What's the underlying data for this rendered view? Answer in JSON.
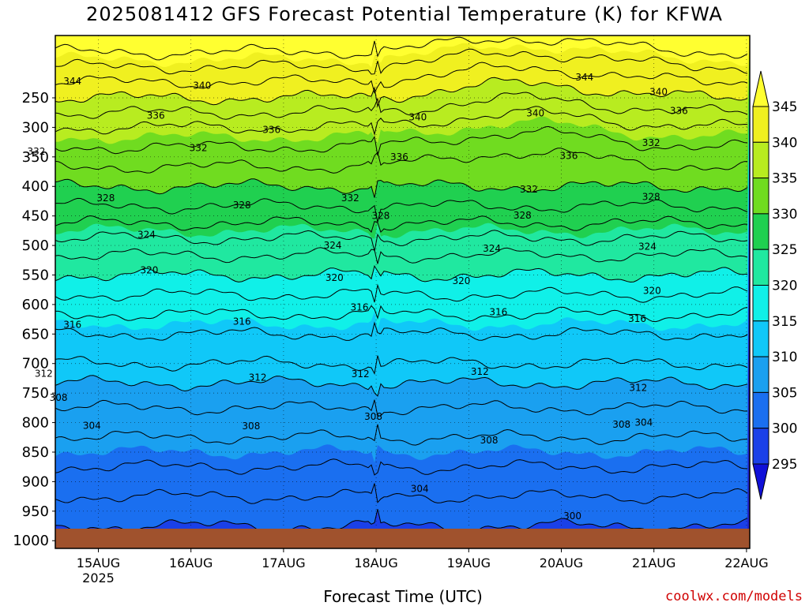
{
  "chart_data": {
    "type": "contour",
    "title": "2025081412 GFS Forecast Potential Temperature (K) for KFWA",
    "xlabel": "Forecast Time (UTC)",
    "credit": "coolwx.com/models",
    "x_ticks": [
      {
        "label": "15AUG",
        "sub": "2025",
        "day": 1
      },
      {
        "label": "16AUG",
        "sub": "",
        "day": 2
      },
      {
        "label": "17AUG",
        "sub": "",
        "day": 3
      },
      {
        "label": "18AUG",
        "sub": "",
        "day": 4
      },
      {
        "label": "19AUG",
        "sub": "",
        "day": 5
      },
      {
        "label": "20AUG",
        "sub": "",
        "day": 6
      },
      {
        "label": "21AUG",
        "sub": "",
        "day": 7
      },
      {
        "label": "22AUG",
        "sub": "",
        "day": 8
      }
    ],
    "x_range_days": [
      0.5,
      8.0
    ],
    "y_axis": "pressure (hPa), inverted",
    "y_ticks": [
      250,
      300,
      350,
      400,
      450,
      500,
      550,
      600,
      650,
      700,
      750,
      800,
      850,
      900,
      950,
      1000
    ],
    "y_range": [
      200,
      1020
    ],
    "colorbar": {
      "levels": [
        295,
        300,
        305,
        310,
        315,
        320,
        325,
        330,
        335,
        340,
        345
      ],
      "colors": [
        "#1010d8",
        "#1a40e8",
        "#1a6ff0",
        "#1aa0f0",
        "#10c8f8",
        "#10f0e8",
        "#20e8a0",
        "#20d050",
        "#70dc20",
        "#b8ec20",
        "#f0f020"
      ],
      "below_color": "#2020c0",
      "above_color": "#ffff30"
    },
    "isotherm_profile": [
      {
        "p": 975,
        "theta": 300
      },
      {
        "p": 925,
        "theta": 302
      },
      {
        "p": 850,
        "theta": 305
      },
      {
        "p": 800,
        "theta": 307
      },
      {
        "p": 750,
        "theta": 309
      },
      {
        "p": 700,
        "theta": 312
      },
      {
        "p": 650,
        "theta": 314
      },
      {
        "p": 600,
        "theta": 317
      },
      {
        "p": 550,
        "theta": 320
      },
      {
        "p": 500,
        "theta": 323
      },
      {
        "p": 450,
        "theta": 327
      },
      {
        "p": 400,
        "theta": 330
      },
      {
        "p": 350,
        "theta": 333
      },
      {
        "p": 300,
        "theta": 336
      },
      {
        "p": 250,
        "theta": 340
      },
      {
        "p": 210,
        "theta": 343
      }
    ],
    "contour_labels": [
      {
        "text": "344",
        "day": 0.72,
        "p": 222
      },
      {
        "text": "340",
        "day": 2.12,
        "p": 229
      },
      {
        "text": "344",
        "day": 6.25,
        "p": 215
      },
      {
        "text": "340",
        "day": 7.05,
        "p": 240
      },
      {
        "text": "336",
        "day": 1.62,
        "p": 280
      },
      {
        "text": "336",
        "day": 2.87,
        "p": 304
      },
      {
        "text": "340",
        "day": 4.45,
        "p": 283
      },
      {
        "text": "340",
        "day": 5.72,
        "p": 276
      },
      {
        "text": "336",
        "day": 7.27,
        "p": 272
      },
      {
        "text": "332",
        "day": 0.33,
        "p": 341
      },
      {
        "text": "332",
        "day": 2.08,
        "p": 335
      },
      {
        "text": "336",
        "day": 4.25,
        "p": 350
      },
      {
        "text": "336",
        "day": 6.08,
        "p": 348
      },
      {
        "text": "332",
        "day": 6.97,
        "p": 326
      },
      {
        "text": "328",
        "day": 1.08,
        "p": 420
      },
      {
        "text": "328",
        "day": 2.55,
        "p": 432
      },
      {
        "text": "332",
        "day": 3.72,
        "p": 420
      },
      {
        "text": "332",
        "day": 5.65,
        "p": 405
      },
      {
        "text": "328",
        "day": 4.05,
        "p": 450
      },
      {
        "text": "328",
        "day": 5.58,
        "p": 449
      },
      {
        "text": "328",
        "day": 6.97,
        "p": 418
      },
      {
        "text": "324",
        "day": 1.52,
        "p": 482
      },
      {
        "text": "324",
        "day": 3.53,
        "p": 500
      },
      {
        "text": "324",
        "day": 5.25,
        "p": 505
      },
      {
        "text": "324",
        "day": 6.93,
        "p": 502
      },
      {
        "text": "320",
        "day": 1.55,
        "p": 542
      },
      {
        "text": "320",
        "day": 3.55,
        "p": 555
      },
      {
        "text": "320",
        "day": 4.92,
        "p": 560
      },
      {
        "text": "320",
        "day": 6.98,
        "p": 577
      },
      {
        "text": "316",
        "day": 0.72,
        "p": 634
      },
      {
        "text": "316",
        "day": 2.55,
        "p": 629
      },
      {
        "text": "316",
        "day": 3.82,
        "p": 605
      },
      {
        "text": "316",
        "day": 5.32,
        "p": 613
      },
      {
        "text": "316",
        "day": 6.82,
        "p": 624
      },
      {
        "text": "312",
        "day": 0.41,
        "p": 717
      },
      {
        "text": "312",
        "day": 2.72,
        "p": 724
      },
      {
        "text": "312",
        "day": 3.83,
        "p": 718
      },
      {
        "text": "312",
        "day": 5.12,
        "p": 714
      },
      {
        "text": "312",
        "day": 6.83,
        "p": 741
      },
      {
        "text": "308",
        "day": 0.57,
        "p": 758
      },
      {
        "text": "308",
        "day": 2.65,
        "p": 806
      },
      {
        "text": "308",
        "day": 3.97,
        "p": 790
      },
      {
        "text": "308",
        "day": 5.22,
        "p": 830
      },
      {
        "text": "308",
        "day": 6.65,
        "p": 803
      },
      {
        "text": "304",
        "day": 6.89,
        "p": 800
      },
      {
        "text": "304",
        "day": 0.93,
        "p": 805
      },
      {
        "text": "304",
        "day": 4.47,
        "p": 912
      },
      {
        "text": "300",
        "day": 6.12,
        "p": 958
      }
    ]
  }
}
